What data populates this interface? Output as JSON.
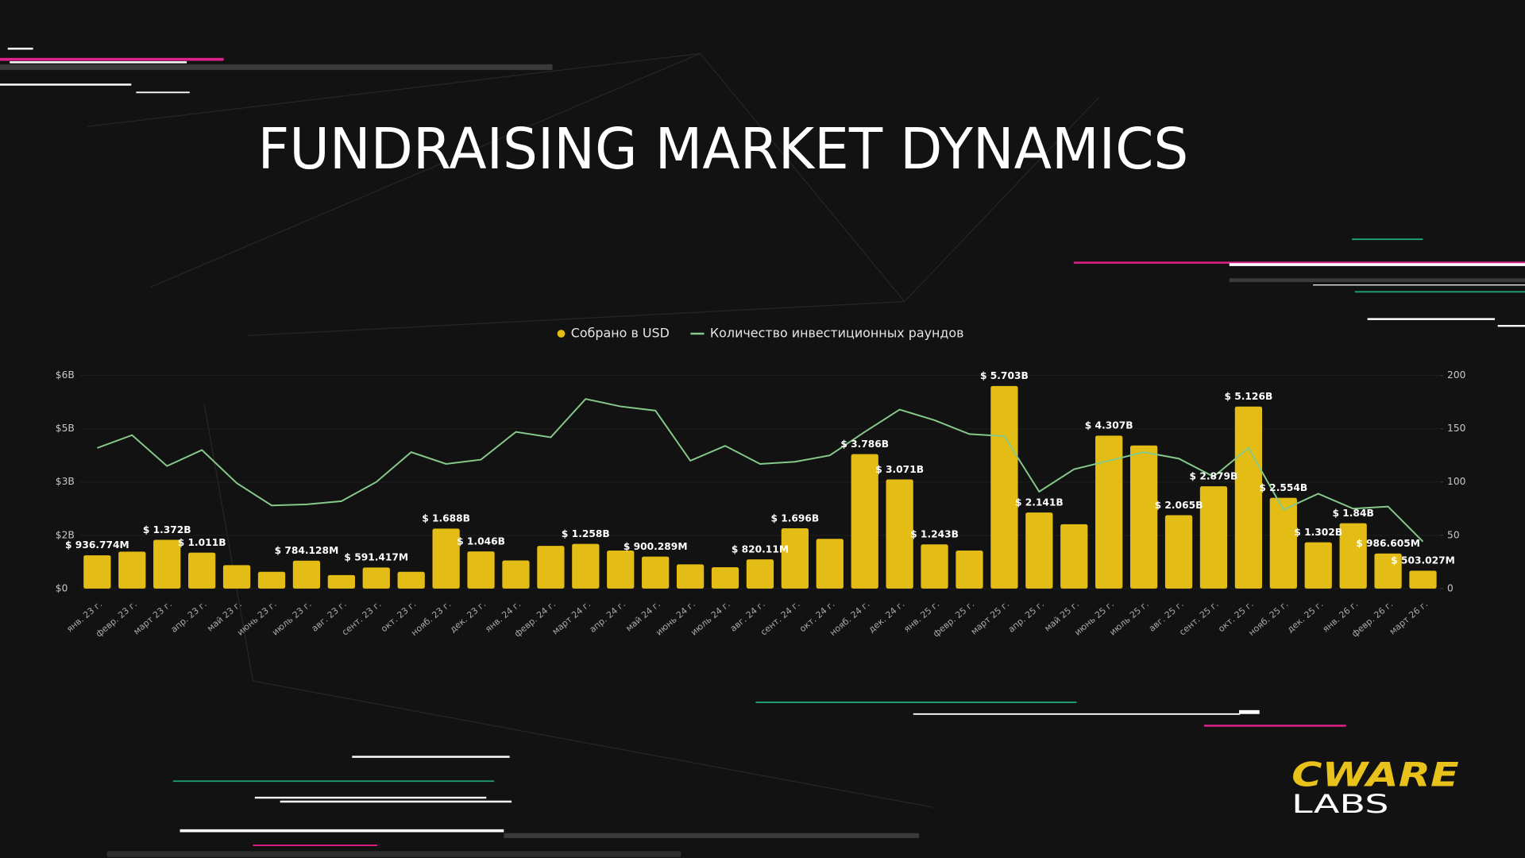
{
  "chart_data": {
    "type": "bar",
    "title": "FUNDRAISING MARKET DYNAMICS",
    "categories": [
      "янв. 23 г.",
      "февр. 23 г.",
      "март 23 г.",
      "апр. 23 г.",
      "май 23 г.",
      "июнь 23 г.",
      "июль 23 г.",
      "авг. 23 г.",
      "сент. 23 г.",
      "окт. 23 г.",
      "нояб. 23 г.",
      "дек. 23 г.",
      "янв. 24 г.",
      "февр. 24 г.",
      "март 24 г.",
      "апр. 24 г.",
      "май 24 г.",
      "июнь 24 г.",
      "июль 24 г.",
      "авг. 24 г.",
      "сент. 24 г.",
      "окт. 24 г.",
      "нояб. 24 г.",
      "дек. 24 г.",
      "янв. 25 г.",
      "февр. 25 г.",
      "март 25 г.",
      "апр. 25 г.",
      "май 25 г.",
      "июнь 25 г.",
      "июль 25 г.",
      "авг. 25 г.",
      "сент. 25 г.",
      "окт. 25 г.",
      "нояб. 25 г.",
      "дек. 25 г.",
      "янв. 26 г.",
      "февр. 26 г.",
      "март 26 г."
    ],
    "series": [
      {
        "name": "Собрано в USD",
        "type": "bar",
        "color": "#e3bd16",
        "values": [
          0.936774,
          1.04,
          1.372,
          1.011,
          0.66,
          0.47,
          0.784128,
          0.38,
          0.591417,
          0.47,
          1.688,
          1.046,
          0.79,
          1.2,
          1.258,
          1.07,
          0.900289,
          0.68,
          0.6,
          0.82011,
          1.696,
          1.4,
          3.786,
          3.071,
          1.243,
          1.07,
          5.703,
          2.141,
          1.81,
          4.307,
          4.03,
          2.065,
          2.879,
          5.126,
          2.554,
          1.302,
          1.84,
          0.986605,
          0.503027
        ],
        "value_labels": [
          "$ 936.774M",
          null,
          "$ 1.372B",
          "$ 1.011B",
          null,
          null,
          "$ 784.128M",
          null,
          "$ 591.417M",
          null,
          "$ 1.688B",
          "$ 1.046B",
          null,
          null,
          "$ 1.258B",
          null,
          "$ 900.289M",
          null,
          null,
          "$ 820.11M",
          "$ 1.696B",
          null,
          "$ 3.786B",
          "$ 3.071B",
          "$ 1.243B",
          null,
          "$ 5.703B",
          "$ 2.141B",
          null,
          "$ 4.307B",
          null,
          "$ 2.065B",
          "$ 2.879B",
          "$ 5.126B",
          "$ 2.554B",
          "$ 1.302B",
          "$ 1.84B",
          "$ 986.605M",
          "$ 503.027M"
        ]
      },
      {
        "name": "Количество инвестиционных раундов",
        "type": "line",
        "axis": "y2",
        "color": "#86c98a",
        "values": [
          132,
          144,
          115,
          130,
          99,
          78,
          79,
          82,
          100,
          128,
          117,
          121,
          147,
          142,
          178,
          171,
          167,
          120,
          134,
          117,
          119,
          125,
          147,
          168,
          158,
          145,
          143,
          91,
          112,
          120,
          128,
          122,
          105,
          132,
          74,
          89,
          75,
          77,
          44
        ]
      }
    ],
    "ylim": [
      0,
      6
    ],
    "yticks": [
      {
        "value": 0,
        "label": "$0"
      },
      {
        "value": 1.5,
        "label": "$2B"
      },
      {
        "value": 3,
        "label": "$3B"
      },
      {
        "value": 4.5,
        "label": "$5B"
      },
      {
        "value": 6,
        "label": "$6B"
      }
    ],
    "y2lim": [
      0,
      200
    ],
    "y2ticks": [
      0,
      50,
      100,
      150,
      200
    ],
    "legend": "top"
  },
  "logo": {
    "top": "CWARE",
    "bottom": "LABS"
  }
}
